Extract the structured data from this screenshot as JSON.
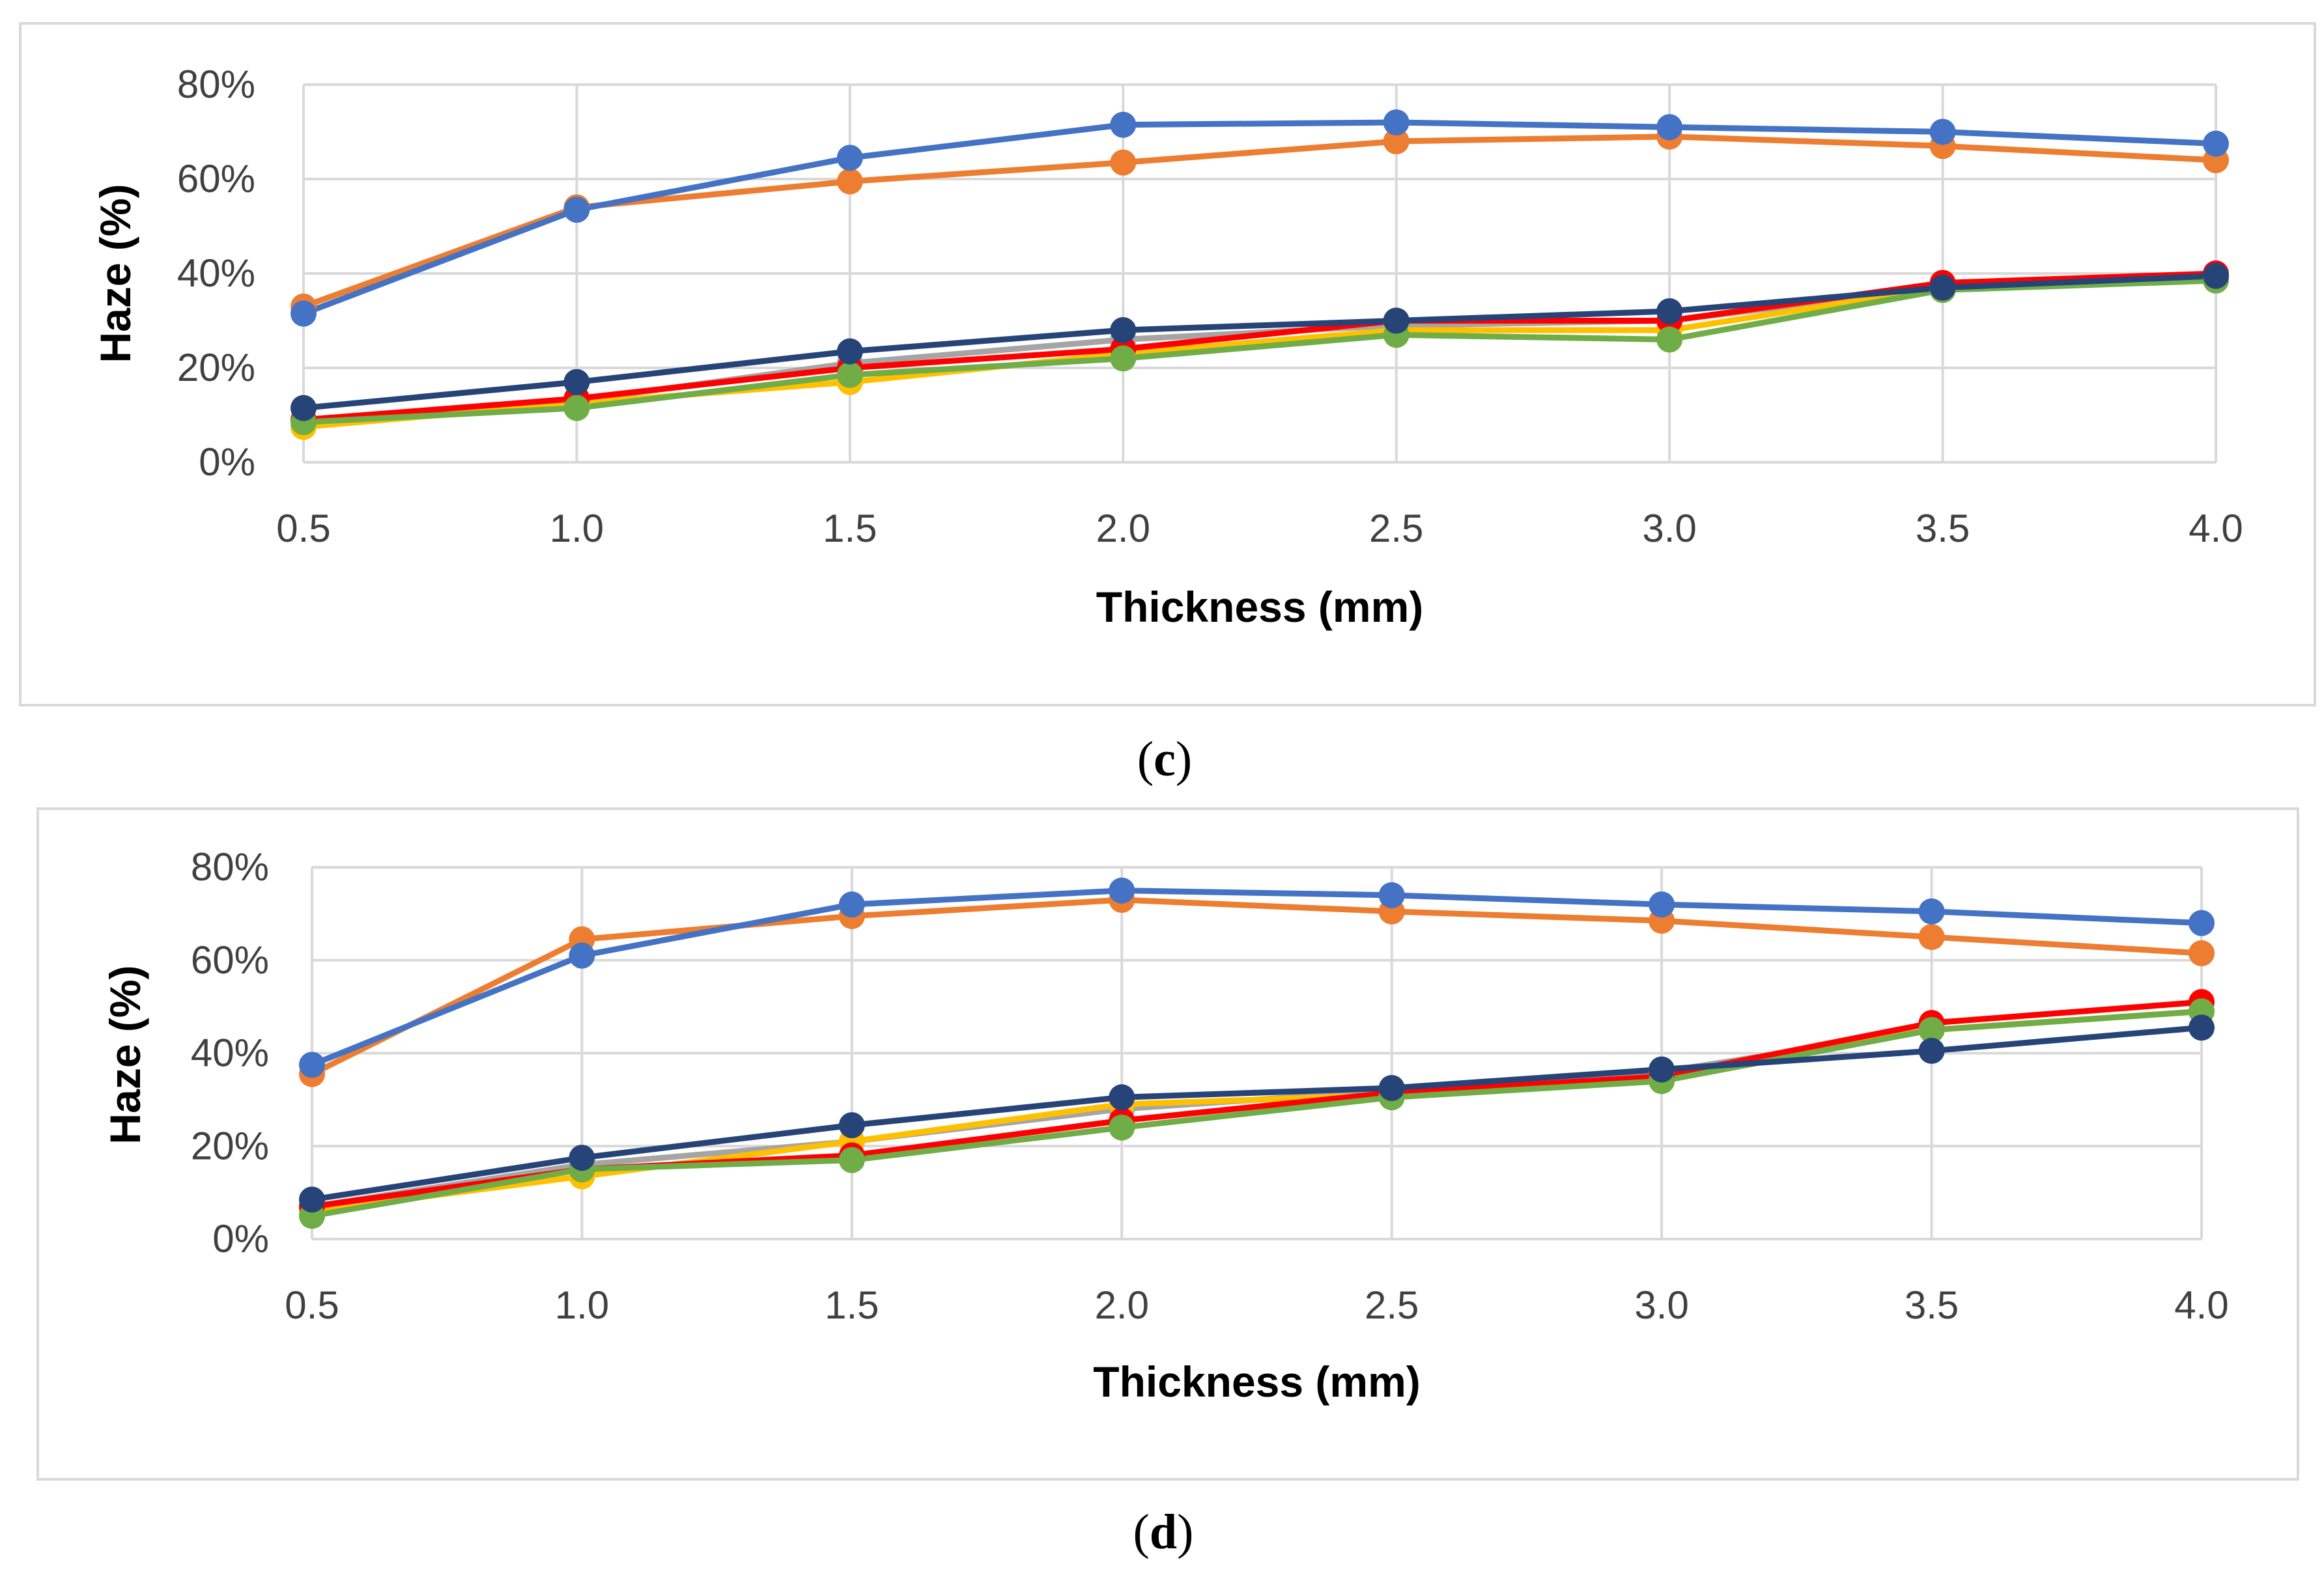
{
  "chart_data": [
    {
      "type": "line",
      "panel_label": "c",
      "title": "",
      "xlabel": "Thickness (mm)",
      "ylabel": "Haze (%)",
      "x": [
        "0.5",
        "1.0",
        "1.5",
        "2.0",
        "2.5",
        "3.0",
        "3.5",
        "4.0"
      ],
      "ylim": [
        0,
        80
      ],
      "yticks": [
        "0%",
        "20%",
        "40%",
        "60%",
        "80%"
      ],
      "grid": true,
      "legend": "none",
      "series": [
        {
          "name": "series-gray",
          "color": "#a5a5a5",
          "values": [
            9,
            13,
            21,
            26,
            29,
            30,
            37,
            39
          ]
        },
        {
          "name": "series-yellow",
          "color": "#ffc000",
          "values": [
            7.5,
            12.5,
            17,
            23,
            28,
            28,
            37,
            39
          ]
        },
        {
          "name": "series-red",
          "color": "#ff0000",
          "values": [
            9,
            13.5,
            20,
            24,
            30,
            30,
            38,
            40
          ]
        },
        {
          "name": "series-green",
          "color": "#70ad47",
          "values": [
            8.5,
            11.5,
            18.5,
            22,
            27,
            26,
            36.5,
            38.5
          ]
        },
        {
          "name": "series-navy",
          "color": "#264478",
          "values": [
            11.5,
            17,
            23.5,
            28,
            30,
            32,
            37,
            39.5
          ]
        },
        {
          "name": "series-orange",
          "color": "#ed7d31",
          "values": [
            33,
            54,
            59.5,
            63.5,
            68,
            69,
            67,
            64
          ]
        },
        {
          "name": "series-blue",
          "color": "#4472c4",
          "values": [
            31.5,
            53.5,
            64.5,
            71.5,
            72,
            71,
            70,
            67.5
          ]
        }
      ]
    },
    {
      "type": "line",
      "panel_label": "d",
      "title": "",
      "xlabel": "Thickness (mm)",
      "ylabel": "Haze (%)",
      "x": [
        "0.5",
        "1.0",
        "1.5",
        "2.0",
        "2.5",
        "3.0",
        "3.5",
        "4.0"
      ],
      "ylim": [
        0,
        80
      ],
      "yticks": [
        "0%",
        "20%",
        "40%",
        "60%",
        "80%"
      ],
      "grid": true,
      "legend": "none",
      "series": [
        {
          "name": "series-gray",
          "color": "#a5a5a5",
          "values": [
            7,
            16,
            21,
            28,
            32,
            36,
            45,
            49
          ]
        },
        {
          "name": "series-yellow",
          "color": "#ffc000",
          "values": [
            6,
            13.5,
            21,
            29,
            31,
            35,
            45,
            49
          ]
        },
        {
          "name": "series-red",
          "color": "#ff0000",
          "values": [
            7,
            15,
            18,
            25.5,
            31.5,
            35,
            46.5,
            51
          ]
        },
        {
          "name": "series-green",
          "color": "#70ad47",
          "values": [
            5,
            15,
            17,
            24,
            30.5,
            34,
            45,
            49
          ]
        },
        {
          "name": "series-navy",
          "color": "#264478",
          "values": [
            8.5,
            17.5,
            24.5,
            30.5,
            32.5,
            36.5,
            40.5,
            45.5
          ]
        },
        {
          "name": "series-orange",
          "color": "#ed7d31",
          "values": [
            35.5,
            64.5,
            69.5,
            73,
            70.5,
            68.5,
            65,
            61.5
          ]
        },
        {
          "name": "series-blue",
          "color": "#4472c4",
          "values": [
            37.5,
            61,
            72,
            75,
            74,
            72,
            70.5,
            68
          ]
        }
      ]
    }
  ]
}
